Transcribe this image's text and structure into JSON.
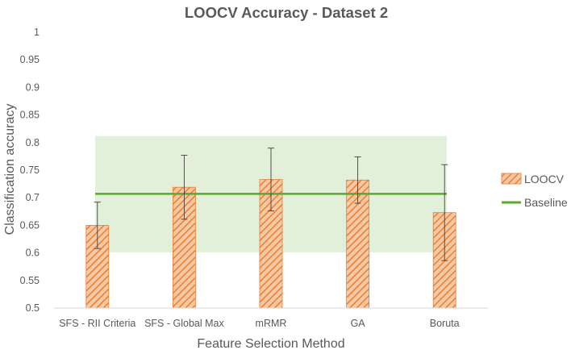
{
  "chart_data": {
    "type": "bar",
    "title": "LOOCV Accuracy - Dataset 2",
    "xlabel": "Feature Selection Method",
    "ylabel": "Classification accuracy",
    "ylim": [
      0.5,
      1.0
    ],
    "yticks": [
      "0.5",
      "0.55",
      "0.6",
      "0.65",
      "0.7",
      "0.75",
      "0.8",
      "0.85",
      "0.9",
      "0.95",
      "1"
    ],
    "categories": [
      "SFS - RII Criteria",
      "SFS - Global Max",
      "mRMR",
      "GA",
      "Boruta"
    ],
    "series": [
      {
        "name": "LOOCV",
        "values": [
          0.65,
          0.719,
          0.733,
          0.732,
          0.673
        ],
        "error_low": [
          0.608,
          0.661,
          0.676,
          0.69,
          0.586
        ],
        "error_high": [
          0.692,
          0.777,
          0.79,
          0.774,
          0.76
        ]
      }
    ],
    "baseline": {
      "name": "Baseline",
      "value": 0.707,
      "band": [
        0.601,
        0.812
      ]
    },
    "legend_position": "right",
    "grid": false,
    "colors": {
      "bar_fill": "#f4c9a4",
      "bar_stripe": "#ed7d31",
      "baseline": "#5aa832",
      "band": "#e2f0d9",
      "text": "#595959",
      "axis": "#d9d9d9",
      "error": "#404040"
    }
  }
}
